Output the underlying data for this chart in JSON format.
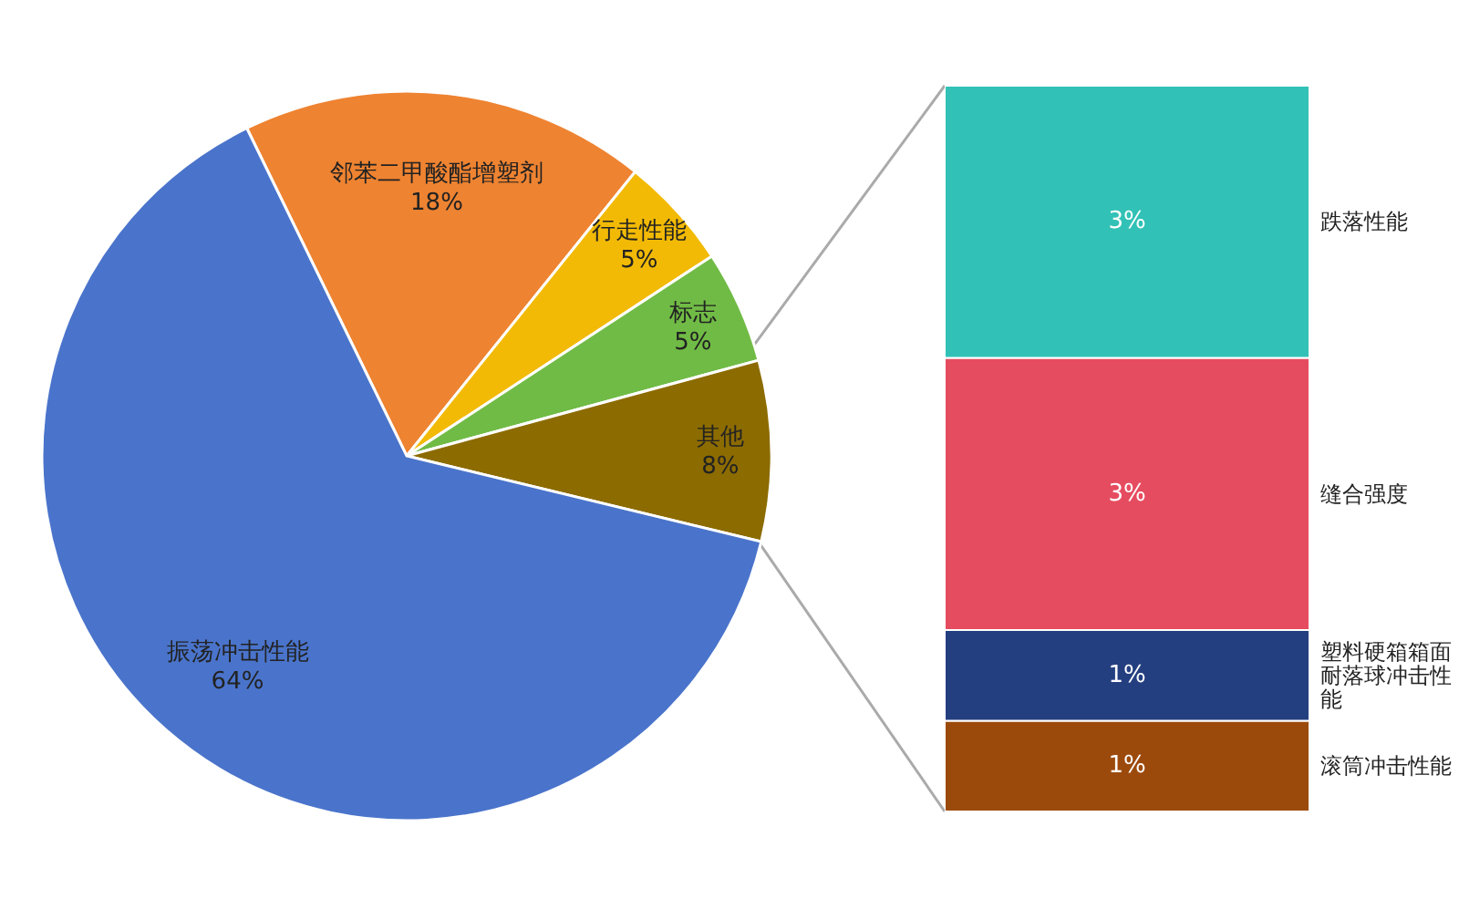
{
  "chart_data": [
    {
      "type": "pie",
      "categories": [
        "邻苯二甲酸酯增塑剂",
        "行走性能",
        "标志",
        "其他",
        "振荡冲击性能"
      ],
      "values": [
        18,
        5,
        5,
        8,
        64
      ],
      "value_labels": [
        "18%",
        "5%",
        "5%",
        "8%",
        "64%"
      ],
      "colors": [
        "#ee8331",
        "#f2ba05",
        "#70bb45",
        "#8c6b00",
        "#4a74cb"
      ],
      "legend": false
    },
    {
      "type": "bar",
      "stacked": true,
      "categories": [
        null
      ],
      "legend": false,
      "series": [
        {
          "name": "滚筒冲击性能",
          "color": "#9c4a0c",
          "values": [
            1
          ],
          "value_labels": [
            "1%"
          ]
        },
        {
          "name": "塑料硬箱箱面耐落球冲击性能",
          "color": "#243f80",
          "values": [
            1
          ],
          "value_labels": [
            "1%"
          ]
        },
        {
          "name": "缝合强度",
          "color": "#e64c5f",
          "values": [
            3
          ],
          "value_labels": [
            "3%"
          ]
        },
        {
          "name": "跌落性能",
          "color": "#32c1b6",
          "values": [
            3
          ],
          "value_labels": [
            "3%"
          ]
        }
      ]
    }
  ]
}
